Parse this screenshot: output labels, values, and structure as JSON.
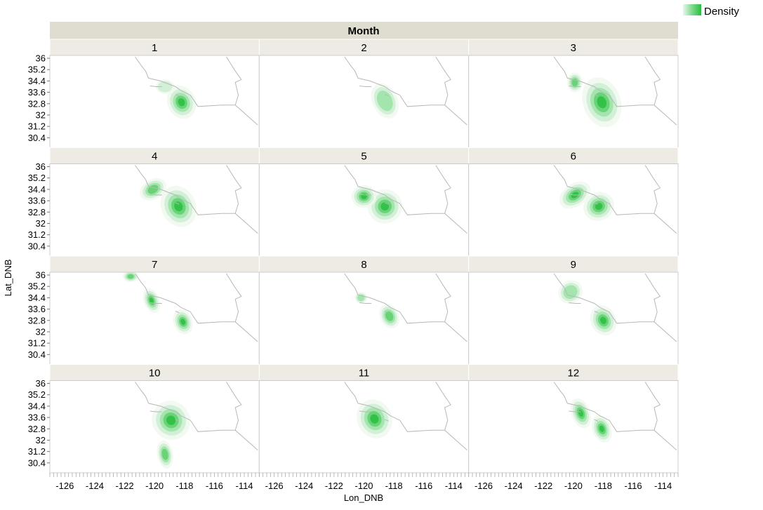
{
  "chart_data": {
    "type": "heatmap",
    "subtype": "faceted-density-contour-map",
    "facet_title": "Month",
    "facets": [
      "1",
      "2",
      "3",
      "4",
      "5",
      "6",
      "7",
      "8",
      "9",
      "10",
      "11",
      "12"
    ],
    "xlabel": "Lon_DNB",
    "ylabel": "Lat_DNB",
    "x_ticks": [
      "-126",
      "-124",
      "-122",
      "-120",
      "-118",
      "-116",
      "-114"
    ],
    "x_tick_values": [
      -126,
      -124,
      -122,
      -120,
      -118,
      -116,
      -114
    ],
    "y_ticks": [
      "36",
      "35.2",
      "34.4",
      "33.6",
      "32.8",
      "32",
      "31.2",
      "30.4"
    ],
    "y_tick_values": [
      36,
      35.2,
      34.4,
      33.6,
      32.8,
      32,
      31.2,
      30.4
    ],
    "xlim": [
      -127,
      -113
    ],
    "ylim": [
      29.7,
      36.2
    ],
    "legend": {
      "title": "Density",
      "position": "top-right"
    },
    "colors": {
      "density": [
        "#eef8ef",
        "#ccefd2",
        "#9be3a6",
        "#5fd06f",
        "#2bbd3f"
      ],
      "facet_header": "#edebe4",
      "title_header": "#dfdcd0",
      "border": "#cccccc",
      "outline": "#b8b8b8"
    },
    "outline_path": [
      [
        -121.3,
        36.1
      ],
      [
        -120.9,
        35.5
      ],
      [
        -120.6,
        35.1
      ],
      [
        -120.4,
        34.6
      ],
      [
        -119.6,
        34.4
      ],
      [
        -119.1,
        34.2
      ],
      [
        -118.6,
        34.0
      ],
      [
        -118.2,
        33.7
      ],
      [
        -117.6,
        33.4
      ],
      [
        -117.1,
        32.6
      ],
      [
        -115.5,
        32.7
      ],
      [
        -114.6,
        32.7
      ],
      [
        -113.1,
        31.3
      ],
      [
        -114.6,
        32.7
      ],
      [
        -114.4,
        33.4
      ],
      [
        -114.6,
        34.3
      ],
      [
        -114.2,
        34.5
      ],
      [
        -114.6,
        35.1
      ],
      [
        -115.2,
        36.1
      ]
    ],
    "islands": [
      [
        [
          -120.3,
          34.05
        ],
        [
          -119.9,
          34.0
        ],
        [
          -119.5,
          34.0
        ]
      ],
      [
        [
          -118.6,
          33.45
        ],
        [
          -118.35,
          33.35
        ]
      ]
    ],
    "density_blobs": {
      "1": [
        {
          "lon": -118.2,
          "lat": 32.9,
          "sx": 0.9,
          "sy": 1.2,
          "rot": -25,
          "peak": 5
        },
        {
          "lon": -119.3,
          "lat": 34.0,
          "sx": 0.6,
          "sy": 0.5,
          "rot": 0,
          "peak": 2
        }
      ],
      "2": [
        {
          "lon": -118.6,
          "lat": 33.0,
          "sx": 0.8,
          "sy": 1.3,
          "rot": -25,
          "peak": 2.6
        }
      ],
      "3": [
        {
          "lon": -118.1,
          "lat": 32.9,
          "sx": 1.2,
          "sy": 1.8,
          "rot": -20,
          "peak": 5
        },
        {
          "lon": -119.9,
          "lat": 34.3,
          "sx": 0.5,
          "sy": 0.7,
          "rot": 0,
          "peak": 3.6
        }
      ],
      "4": [
        {
          "lon": -118.4,
          "lat": 33.2,
          "sx": 1.1,
          "sy": 1.5,
          "rot": -25,
          "peak": 5
        },
        {
          "lon": -120.1,
          "lat": 34.4,
          "sx": 0.9,
          "sy": 0.7,
          "rot": -30,
          "peak": 3.2
        }
      ],
      "5": [
        {
          "lon": -118.6,
          "lat": 33.2,
          "sx": 1.1,
          "sy": 1.2,
          "rot": -25,
          "peak": 4.6
        },
        {
          "lon": -120.0,
          "lat": 33.9,
          "sx": 0.8,
          "sy": 0.8,
          "rot": 0,
          "peak": 4.2
        }
      ],
      "6": [
        {
          "lon": -119.9,
          "lat": 34.0,
          "sx": 1.1,
          "sy": 0.8,
          "rot": -35,
          "peak": 4.8
        },
        {
          "lon": -118.3,
          "lat": 33.2,
          "sx": 1.0,
          "sy": 1.0,
          "rot": -25,
          "peak": 4.7
        }
      ],
      "7": [
        {
          "lon": -120.2,
          "lat": 34.2,
          "sx": 0.5,
          "sy": 0.9,
          "rot": -20,
          "peak": 5
        },
        {
          "lon": -118.1,
          "lat": 32.7,
          "sx": 0.6,
          "sy": 0.9,
          "rot": -20,
          "peak": 5
        },
        {
          "lon": -121.6,
          "lat": 35.9,
          "sx": 0.5,
          "sy": 0.4,
          "rot": 0,
          "peak": 3.3
        }
      ],
      "8": [
        {
          "lon": -118.3,
          "lat": 33.1,
          "sx": 0.6,
          "sy": 0.9,
          "rot": -25,
          "peak": 3.6
        },
        {
          "lon": -120.2,
          "lat": 34.4,
          "sx": 0.4,
          "sy": 0.4,
          "rot": 0,
          "peak": 2.4
        }
      ],
      "9": [
        {
          "lon": -118.0,
          "lat": 32.8,
          "sx": 0.8,
          "sy": 1.1,
          "rot": -25,
          "peak": 5
        },
        {
          "lon": -120.2,
          "lat": 34.8,
          "sx": 0.8,
          "sy": 0.8,
          "rot": -35,
          "peak": 2.2
        }
      ],
      "10": [
        {
          "lon": -118.9,
          "lat": 33.4,
          "sx": 1.2,
          "sy": 1.4,
          "rot": -35,
          "peak": 5
        },
        {
          "lon": -119.3,
          "lat": 31.0,
          "sx": 0.5,
          "sy": 1.0,
          "rot": -10,
          "peak": 3.2
        }
      ],
      "11": [
        {
          "lon": -119.3,
          "lat": 33.5,
          "sx": 1.1,
          "sy": 1.4,
          "rot": -25,
          "peak": 5
        }
      ],
      "12": [
        {
          "lon": -119.5,
          "lat": 33.9,
          "sx": 0.6,
          "sy": 1.1,
          "rot": -20,
          "peak": 4.8
        },
        {
          "lon": -118.1,
          "lat": 32.8,
          "sx": 0.6,
          "sy": 1.0,
          "rot": -20,
          "peak": 4.8
        }
      ]
    }
  }
}
